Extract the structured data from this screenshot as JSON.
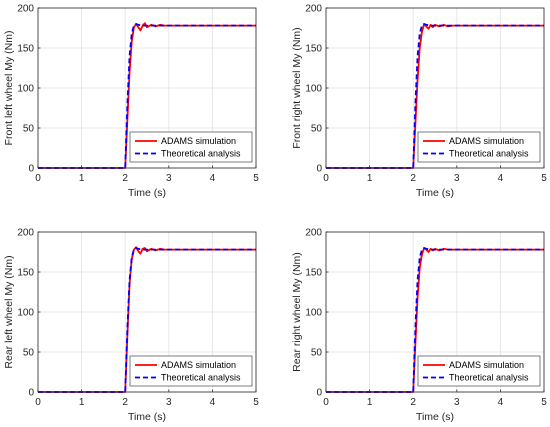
{
  "chart_data": [
    {
      "type": "line",
      "xlabel": "Time (s)",
      "ylabel": "Front left wheel My (Nm)",
      "xlim": [
        0,
        5
      ],
      "ylim": [
        0,
        200
      ],
      "xticks": [
        "0",
        "1",
        "2",
        "3",
        "4",
        "5"
      ],
      "yticks": [
        "0",
        "50",
        "100",
        "150",
        "200"
      ],
      "grid": true,
      "legend_position": "bottom-right",
      "series": [
        {
          "name": "ADAMS simulation",
          "color": "#ff0000",
          "style": "solid",
          "x": [
            0,
            2.0,
            2.05,
            2.1,
            2.15,
            2.2,
            2.25,
            2.3,
            2.35,
            2.4,
            2.45,
            2.5,
            2.6,
            2.7,
            2.8,
            2.9,
            3.0,
            3.2,
            3.5,
            4.0,
            5.0
          ],
          "y": [
            0,
            0,
            60,
            120,
            158,
            176,
            180,
            176,
            172,
            178,
            181,
            176,
            179,
            177,
            179,
            178,
            178,
            178,
            178,
            178,
            178
          ]
        },
        {
          "name": "Theoretical analysis",
          "color": "#0000ff",
          "style": "dashed",
          "x": [
            0,
            2.0,
            2.05,
            2.1,
            2.15,
            2.2,
            2.25,
            2.3,
            2.4,
            2.6,
            3.0,
            5.0
          ],
          "y": [
            0,
            0,
            80,
            140,
            168,
            178,
            180,
            179,
            178,
            178,
            178,
            178
          ]
        }
      ]
    },
    {
      "type": "line",
      "xlabel": "Time (s)",
      "ylabel": "Front right wheel My (Nm)",
      "xlim": [
        0,
        5
      ],
      "ylim": [
        0,
        200
      ],
      "xticks": [
        "0",
        "1",
        "2",
        "3",
        "4",
        "5"
      ],
      "yticks": [
        "0",
        "50",
        "100",
        "150",
        "200"
      ],
      "grid": true,
      "legend_position": "bottom-right",
      "series": [
        {
          "name": "ADAMS simulation",
          "color": "#ff0000",
          "style": "solid",
          "x": [
            0,
            2.0,
            2.05,
            2.1,
            2.15,
            2.2,
            2.25,
            2.3,
            2.35,
            2.4,
            2.45,
            2.5,
            2.6,
            2.7,
            2.8,
            2.9,
            3.0,
            3.2,
            3.5,
            4.0,
            5.0
          ],
          "y": [
            0,
            0,
            55,
            110,
            150,
            170,
            180,
            177,
            174,
            179,
            176,
            179,
            177,
            179,
            177,
            178,
            178,
            178,
            178,
            178,
            178
          ]
        },
        {
          "name": "Theoretical analysis",
          "color": "#0000ff",
          "style": "dashed",
          "x": [
            0,
            2.0,
            2.05,
            2.1,
            2.15,
            2.2,
            2.25,
            2.3,
            2.4,
            2.6,
            3.0,
            5.0
          ],
          "y": [
            0,
            0,
            80,
            140,
            168,
            178,
            180,
            179,
            178,
            178,
            178,
            178
          ]
        }
      ]
    },
    {
      "type": "line",
      "xlabel": "Time (s)",
      "ylabel": "Rear left wheel My (Nm)",
      "xlim": [
        0,
        5
      ],
      "ylim": [
        0,
        200
      ],
      "xticks": [
        "0",
        "1",
        "2",
        "3",
        "4",
        "5"
      ],
      "yticks": [
        "0",
        "50",
        "100",
        "150",
        "200"
      ],
      "grid": true,
      "legend_position": "bottom-right",
      "series": [
        {
          "name": "ADAMS simulation",
          "color": "#ff0000",
          "style": "solid",
          "x": [
            0,
            2.0,
            2.05,
            2.1,
            2.15,
            2.2,
            2.25,
            2.3,
            2.35,
            2.4,
            2.45,
            2.5,
            2.6,
            2.7,
            2.8,
            2.9,
            3.0,
            3.2,
            3.5,
            4.0,
            5.0
          ],
          "y": [
            0,
            0,
            70,
            135,
            166,
            178,
            181,
            176,
            173,
            179,
            180,
            176,
            179,
            177,
            179,
            178,
            178,
            178,
            178,
            178,
            178
          ]
        },
        {
          "name": "Theoretical analysis",
          "color": "#0000ff",
          "style": "dashed",
          "x": [
            0,
            2.0,
            2.05,
            2.1,
            2.15,
            2.2,
            2.25,
            2.3,
            2.4,
            2.6,
            3.0,
            5.0
          ],
          "y": [
            0,
            0,
            80,
            140,
            168,
            178,
            180,
            179,
            178,
            178,
            178,
            178
          ]
        }
      ]
    },
    {
      "type": "line",
      "xlabel": "Time (s)",
      "ylabel": "Rear right wheel My (Nm)",
      "xlim": [
        0,
        5
      ],
      "ylim": [
        0,
        200
      ],
      "xticks": [
        "0",
        "1",
        "2",
        "3",
        "4",
        "5"
      ],
      "yticks": [
        "0",
        "50",
        "100",
        "150",
        "200"
      ],
      "grid": true,
      "legend_position": "bottom-right",
      "series": [
        {
          "name": "ADAMS simulation",
          "color": "#ff0000",
          "style": "solid",
          "x": [
            0,
            2.0,
            2.05,
            2.1,
            2.15,
            2.2,
            2.25,
            2.3,
            2.35,
            2.4,
            2.45,
            2.5,
            2.6,
            2.7,
            2.8,
            2.9,
            3.0,
            3.2,
            3.5,
            4.0,
            5.0
          ],
          "y": [
            0,
            0,
            60,
            118,
            155,
            172,
            180,
            178,
            175,
            179,
            177,
            179,
            177,
            179,
            178,
            178,
            178,
            178,
            178,
            178,
            178
          ]
        },
        {
          "name": "Theoretical analysis",
          "color": "#0000ff",
          "style": "dashed",
          "x": [
            0,
            2.0,
            2.05,
            2.1,
            2.15,
            2.2,
            2.25,
            2.3,
            2.4,
            2.6,
            3.0,
            5.0
          ],
          "y": [
            0,
            0,
            80,
            140,
            168,
            178,
            180,
            179,
            178,
            178,
            178,
            178
          ]
        }
      ]
    }
  ]
}
